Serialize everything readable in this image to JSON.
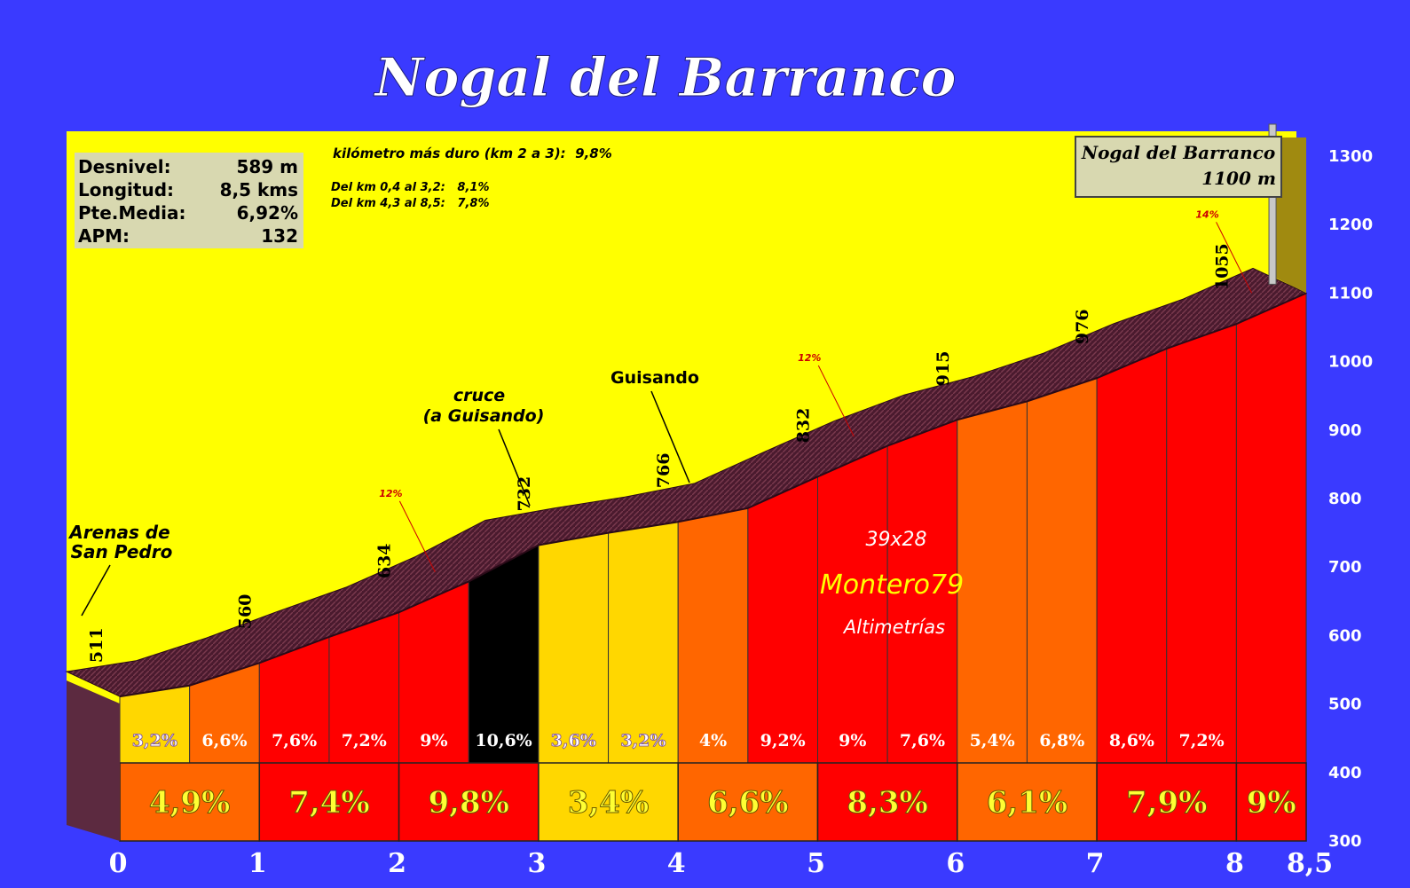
{
  "page_title": "Nogal del Barranco",
  "stats": {
    "rows": [
      {
        "label": "Desnivel:",
        "value": "589 m"
      },
      {
        "label": "Longitud:",
        "value": "8,5 kms"
      },
      {
        "label": "Pte.Media:",
        "value": "6,92%"
      },
      {
        "label": "APM:",
        "value": "132"
      }
    ]
  },
  "notes": {
    "hardest_km": "kilómetro más duro (km 2 a 3):  9,8%",
    "range1": "Del km 0,4 al 3,2:   8,1%",
    "range2": "Del km 4,3 al 8,5:   7,8%"
  },
  "summit_box": {
    "name": "Nogal del Barranco",
    "altitude": "1100 m"
  },
  "places": {
    "start_line1": "Arenas de",
    "start_line2": "San Pedro",
    "cruce_line1": "cruce",
    "cruce_line2": "(a Guisando)",
    "guisando": "Guisando"
  },
  "watermark": {
    "gear": "39x28",
    "author": "Montero79",
    "sub": "Altimetrías"
  },
  "colors": {
    "background": "#3a3aff",
    "plot_bg": "#ffff00",
    "road": "#4a1a2e",
    "side_wall": "#5c2a40",
    "pct_colors": {
      "light": "#ffd700",
      "orange": "#ff6600",
      "red": "#ff0000",
      "black": "#000000"
    }
  },
  "chart_data": {
    "type": "area",
    "title": "Nogal del Barranco",
    "x_unit": "km",
    "y_unit": "m",
    "xlim": [
      0,
      8.5
    ],
    "ylim": [
      300,
      1300
    ],
    "x_ticks": [
      0,
      1,
      2,
      3,
      4,
      5,
      6,
      7,
      8,
      8.5
    ],
    "x_tick_labels": [
      "0",
      "1",
      "2",
      "3",
      "4",
      "5",
      "6",
      "7",
      "8",
      "8,5"
    ],
    "y_ticks": [
      300,
      400,
      500,
      600,
      700,
      800,
      900,
      1000,
      1100,
      1200,
      1300
    ],
    "y_tick_labels": [
      "300",
      "400",
      "500",
      "600",
      "700",
      "800",
      "900",
      "1000",
      "1100",
      "1200",
      "1300"
    ],
    "profile": [
      {
        "x": 0,
        "y": 511
      },
      {
        "x": 0.5,
        "y": 527
      },
      {
        "x": 1,
        "y": 560
      },
      {
        "x": 1.5,
        "y": 598
      },
      {
        "x": 2,
        "y": 634
      },
      {
        "x": 2.5,
        "y": 679
      },
      {
        "x": 3,
        "y": 732
      },
      {
        "x": 3.5,
        "y": 750
      },
      {
        "x": 4,
        "y": 766
      },
      {
        "x": 4.5,
        "y": 786
      },
      {
        "x": 5,
        "y": 832
      },
      {
        "x": 5.5,
        "y": 877
      },
      {
        "x": 6,
        "y": 915
      },
      {
        "x": 6.5,
        "y": 942
      },
      {
        "x": 7,
        "y": 976
      },
      {
        "x": 7.5,
        "y": 1019
      },
      {
        "x": 8,
        "y": 1055
      },
      {
        "x": 8.5,
        "y": 1100
      }
    ],
    "altitude_labels": [
      {
        "x": 0,
        "label": "511"
      },
      {
        "x": 1,
        "label": "560"
      },
      {
        "x": 2,
        "label": "634"
      },
      {
        "x": 3,
        "label": "732"
      },
      {
        "x": 4,
        "label": "766"
      },
      {
        "x": 5,
        "label": "832"
      },
      {
        "x": 6,
        "label": "915"
      },
      {
        "x": 7,
        "label": "976"
      },
      {
        "x": 8,
        "label": "1055"
      }
    ],
    "half_km_gradients": [
      {
        "from": 0,
        "to": 0.5,
        "label": "3,2%",
        "color": "light"
      },
      {
        "from": 0.5,
        "to": 1,
        "label": "6,6%",
        "color": "orange"
      },
      {
        "from": 1,
        "to": 1.5,
        "label": "7,6%",
        "color": "red"
      },
      {
        "from": 1.5,
        "to": 2,
        "label": "7,2%",
        "color": "red"
      },
      {
        "from": 2,
        "to": 2.5,
        "label": "9%",
        "color": "red"
      },
      {
        "from": 2.5,
        "to": 3,
        "label": "10,6%",
        "color": "black"
      },
      {
        "from": 3,
        "to": 3.5,
        "label": "3,6%",
        "color": "light"
      },
      {
        "from": 3.5,
        "to": 4,
        "label": "3,2%",
        "color": "light"
      },
      {
        "from": 4,
        "to": 4.5,
        "label": "4%",
        "color": "orange"
      },
      {
        "from": 4.5,
        "to": 5,
        "label": "9,2%",
        "color": "red"
      },
      {
        "from": 5,
        "to": 5.5,
        "label": "9%",
        "color": "red"
      },
      {
        "from": 5.5,
        "to": 6,
        "label": "7,6%",
        "color": "red"
      },
      {
        "from": 6,
        "to": 6.5,
        "label": "5,4%",
        "color": "orange"
      },
      {
        "from": 6.5,
        "to": 7,
        "label": "6,8%",
        "color": "orange"
      },
      {
        "from": 7,
        "to": 7.5,
        "label": "8,6%",
        "color": "red"
      },
      {
        "from": 7.5,
        "to": 8,
        "label": "7,2%",
        "color": "red"
      },
      {
        "from": 8,
        "to": 8.5,
        "label": "",
        "color": "red"
      }
    ],
    "km_gradients": [
      {
        "from": 0,
        "to": 1,
        "label": "4,9%",
        "color": "orange"
      },
      {
        "from": 1,
        "to": 2,
        "label": "7,4%",
        "color": "red"
      },
      {
        "from": 2,
        "to": 3,
        "label": "9,8%",
        "color": "red"
      },
      {
        "from": 3,
        "to": 4,
        "label": "3,4%",
        "color": "light"
      },
      {
        "from": 4,
        "to": 5,
        "label": "6,6%",
        "color": "orange"
      },
      {
        "from": 5,
        "to": 6,
        "label": "8,3%",
        "color": "red"
      },
      {
        "from": 6,
        "to": 7,
        "label": "6,1%",
        "color": "orange"
      },
      {
        "from": 7,
        "to": 8,
        "label": "7,9%",
        "color": "red"
      },
      {
        "from": 8,
        "to": 8.5,
        "label": "9%",
        "color": "red"
      }
    ],
    "max_gradient_notes": [
      {
        "x": 2.45,
        "label": "12%"
      },
      {
        "x": 5.45,
        "label": "12%"
      },
      {
        "x": 8.3,
        "label": "14%"
      }
    ]
  }
}
